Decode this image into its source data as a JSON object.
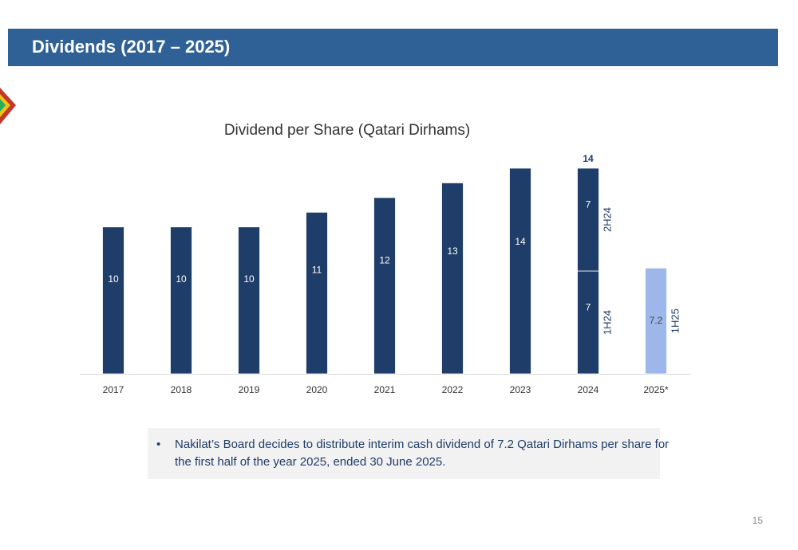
{
  "header": {
    "title": "Dividends (2017 – 2025)"
  },
  "chart_data": {
    "type": "stacked_bar",
    "title": "Dividend per Share (Qatari Dirhams)",
    "categories": [
      "2017",
      "2018",
      "2019",
      "2020",
      "2021",
      "2022",
      "2023",
      "2024",
      "2025*"
    ],
    "ylim": [
      0,
      14
    ],
    "series": [
      {
        "color": "#1f3d69",
        "values": [
          10,
          10,
          10,
          11,
          12,
          13,
          14,
          7,
          null
        ],
        "side_labels": [
          null,
          null,
          null,
          null,
          null,
          null,
          null,
          "1H24",
          null
        ]
      },
      {
        "color": "#1f3d69",
        "values": [
          null,
          null,
          null,
          null,
          null,
          null,
          null,
          7,
          null
        ],
        "side_labels": [
          null,
          null,
          null,
          null,
          null,
          null,
          null,
          "2H24",
          null
        ]
      },
      {
        "color": "#9db7ea",
        "values": [
          null,
          null,
          null,
          null,
          null,
          null,
          null,
          null,
          7.2
        ],
        "side_labels": [
          null,
          null,
          null,
          null,
          null,
          null,
          null,
          null,
          "1H25"
        ]
      }
    ],
    "totals": [
      null,
      null,
      null,
      null,
      null,
      null,
      null,
      14,
      null
    ]
  },
  "note": {
    "bullet": "•",
    "text_lines": [
      "Nakilat’s Board decides to distribute interim cash dividend of 7.2 Qatari Dirhams per share for",
      "the first half of the year 2025, ended 30 June 2025."
    ]
  },
  "page_number": "15"
}
